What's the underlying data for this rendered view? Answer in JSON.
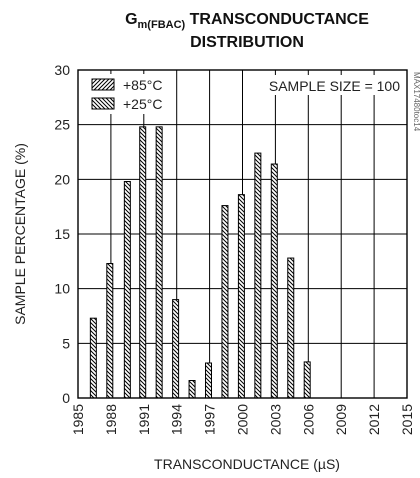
{
  "chart_data": {
    "type": "bar",
    "title_main": "G",
    "title_sub": "m(FBAC)",
    "title_rest": " TRANSCONDUCTANCE",
    "title_line2": "DISTRIBUTION",
    "xlabel": "TRANSCONDUCTANCE (µS)",
    "ylabel": "SAMPLE PERCENTAGE (%)",
    "annotation": "SAMPLE SIZE = 100",
    "watermark": "MAX17480toc14",
    "xlim": [
      1985,
      2015
    ],
    "ylim": [
      0,
      30
    ],
    "xticks": [
      "1985",
      "1988",
      "1991",
      "1994",
      "1997",
      "2000",
      "2003",
      "2006",
      "2009",
      "2012",
      "2015"
    ],
    "yticks": [
      "0",
      "5",
      "10",
      "15",
      "20",
      "25",
      "30"
    ],
    "grid": true,
    "legend_position": "top-left",
    "series": [
      {
        "name": "+85°C",
        "pattern": "hatch-right",
        "x": [
          1986.4,
          1987.9,
          1989.5,
          1990.9,
          1992.4,
          1993.9,
          1995.4,
          1996.9,
          1998.4,
          1999.9,
          2001.4,
          2002.9,
          2004.4,
          2005.9
        ],
        "values": [
          0,
          0,
          0,
          0,
          0,
          0,
          0,
          0,
          0,
          0,
          0,
          0,
          0,
          0
        ]
      },
      {
        "name": "+25°C",
        "pattern": "hatch-left",
        "x": [
          1986.4,
          1987.9,
          1989.5,
          1990.9,
          1992.4,
          1993.9,
          1995.4,
          1996.9,
          1998.4,
          1999.9,
          2001.4,
          2002.9,
          2004.4,
          2005.9
        ],
        "values": [
          7.3,
          12.3,
          19.8,
          24.8,
          24.8,
          9.0,
          1.6,
          3.2,
          17.6,
          18.6,
          22.4,
          21.4,
          12.8,
          3.3
        ]
      }
    ]
  }
}
